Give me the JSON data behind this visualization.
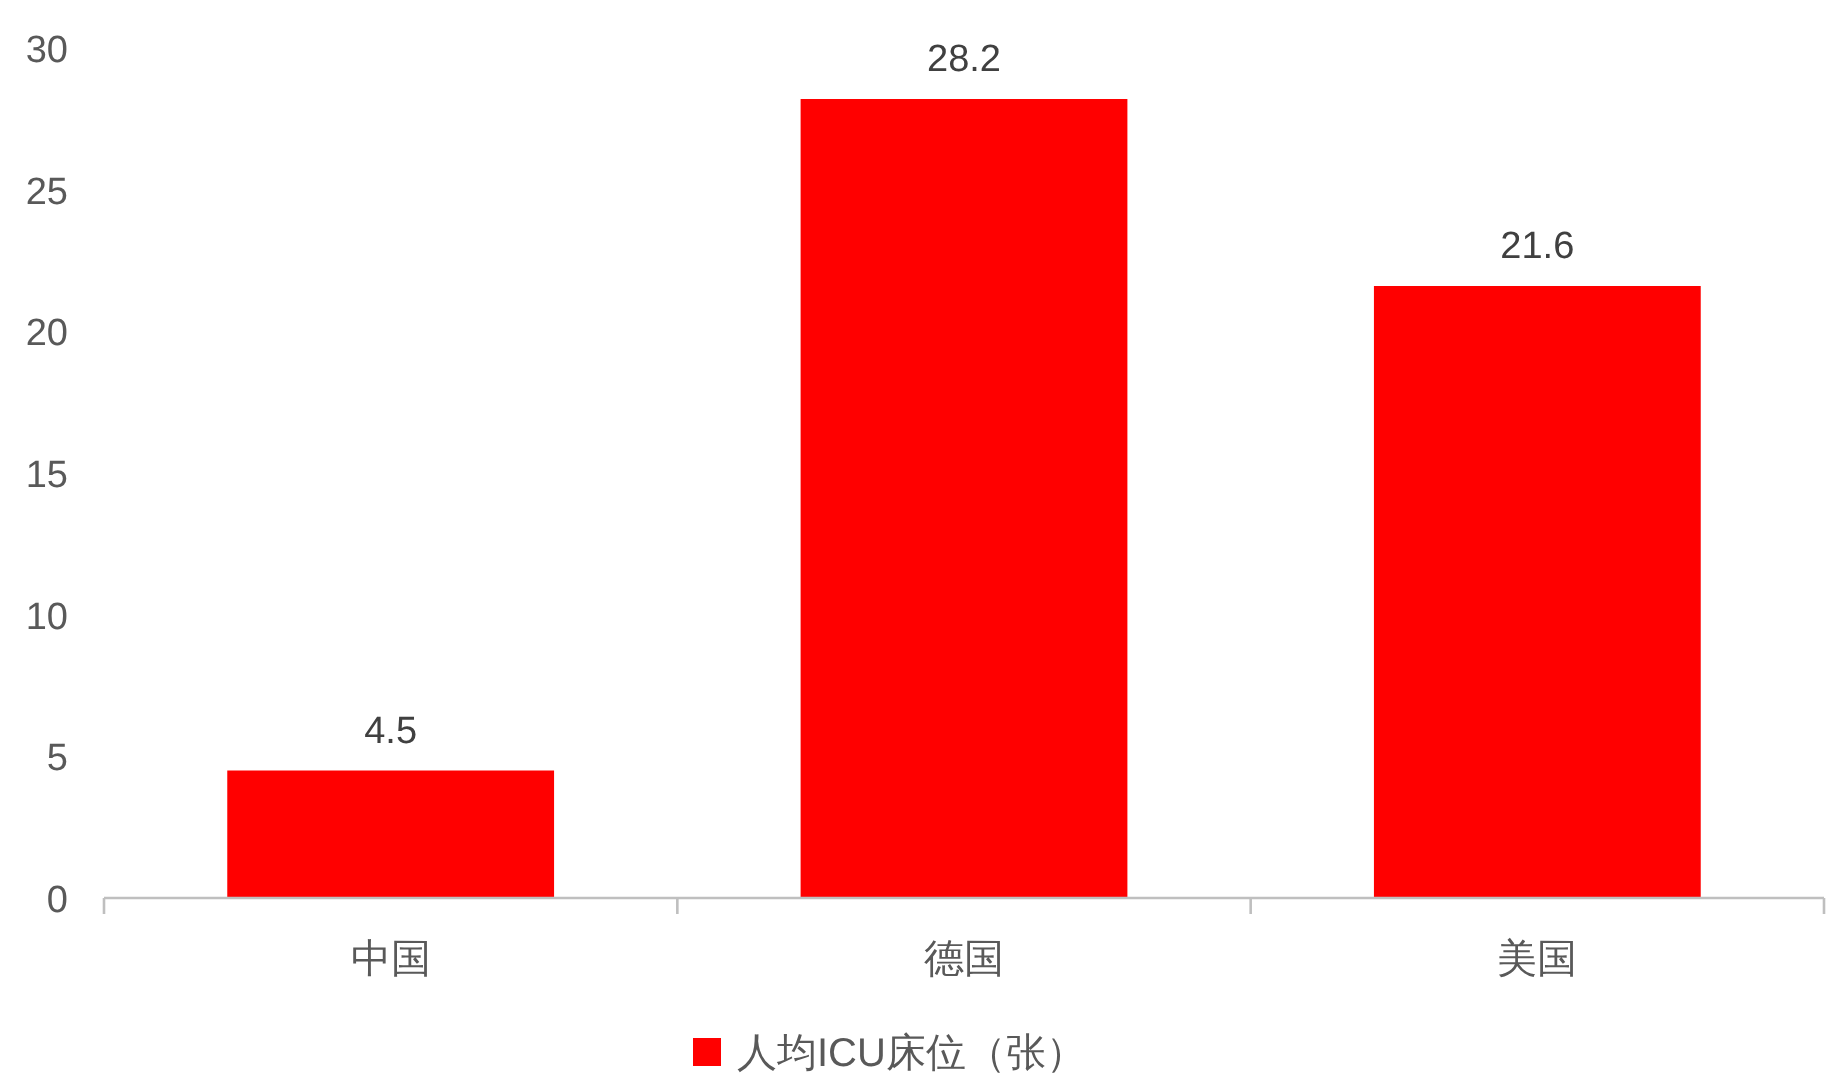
{
  "chart_data": {
    "type": "bar",
    "categories": [
      "中国",
      "德国",
      "美国"
    ],
    "series": [
      {
        "name": "人均ICU床位（张）",
        "color": "#ff0000",
        "values": [
          4.5,
          28.2,
          21.6
        ]
      }
    ],
    "ylim": [
      0,
      30
    ],
    "yticks": [
      0,
      5,
      10,
      15,
      20,
      25,
      30
    ],
    "data_labels": true,
    "legend": "bottom",
    "grid": false
  }
}
